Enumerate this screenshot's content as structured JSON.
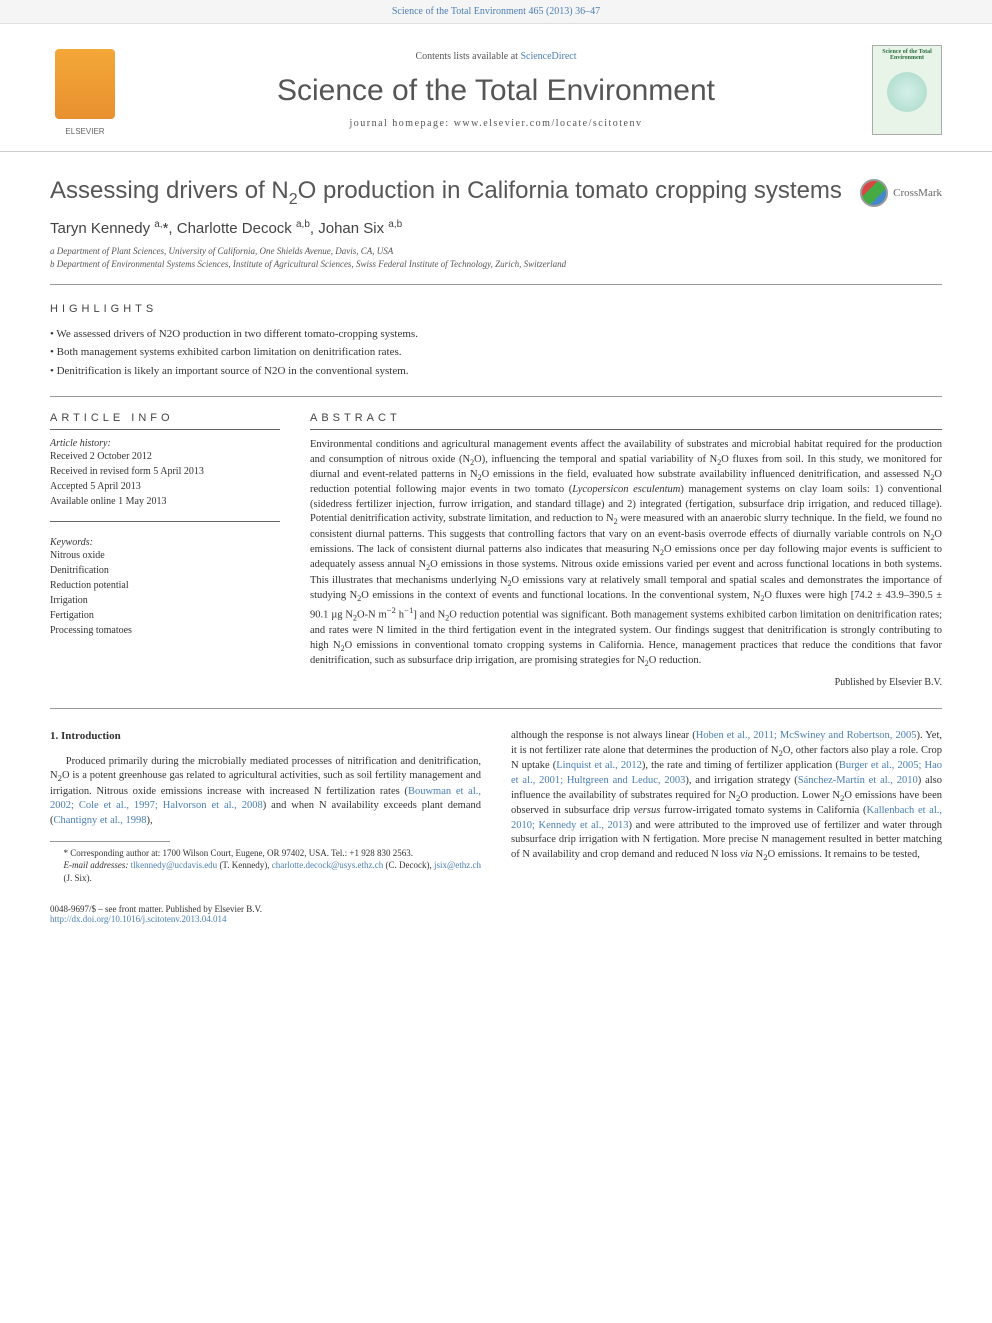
{
  "header_bar": {
    "text_prefix": "Science of the Total Environment 465 (2013) 36–47"
  },
  "journal_header": {
    "contents_prefix": "Contents lists available at ",
    "contents_link": "ScienceDirect",
    "journal_title": "Science of the Total Environment",
    "homepage_prefix": "journal homepage: ",
    "homepage_url": "www.elsevier.com/locate/scitotenv",
    "elsevier_label": "ELSEVIER",
    "cover_title": "Science of the Total Environment"
  },
  "article": {
    "title_html": "Assessing drivers of N<sub>2</sub>O production in California tomato cropping systems",
    "crossmark_label": "CrossMark",
    "authors_html": "Taryn Kennedy <sup>a,</sup><span class='star'>*</span>, Charlotte Decock <sup>a,b</sup>, Johan Six <sup>a,b</sup>",
    "affiliations": [
      "a  Department of Plant Sciences, University of California, One Shields Avenue, Davis, CA, USA",
      "b  Department of Environmental Systems Sciences, Institute of Agricultural Sciences, Swiss Federal Institute of Technology, Zurich, Switzerland"
    ]
  },
  "highlights": {
    "header": "HIGHLIGHTS",
    "items": [
      "We assessed drivers of N2O production in two different tomato-cropping systems.",
      "Both management systems exhibited carbon limitation on denitrification rates.",
      "Denitrification is likely an important source of N2O in the conventional system."
    ]
  },
  "article_info": {
    "header": "ARTICLE INFO",
    "history_label": "Article history:",
    "history": [
      "Received 2 October 2012",
      "Received in revised form 5 April 2013",
      "Accepted 5 April 2013",
      "Available online 1 May 2013"
    ],
    "keywords_label": "Keywords:",
    "keywords": [
      "Nitrous oxide",
      "Denitrification",
      "Reduction potential",
      "Irrigation",
      "Fertigation",
      "Processing tomatoes"
    ]
  },
  "abstract": {
    "header": "ABSTRACT",
    "text_html": "Environmental conditions and agricultural management events affect the availability of substrates and microbial habitat required for the production and consumption of nitrous oxide (N<sub>2</sub>O), influencing the temporal and spatial variability of N<sub>2</sub>O fluxes from soil. In this study, we monitored for diurnal and event-related patterns in N<sub>2</sub>O emissions in the field, evaluated how substrate availability influenced denitrification, and assessed N<sub>2</sub>O reduction potential following major events in two tomato (<i>Lycopersicon esculentum</i>) management systems on clay loam soils: 1) conventional (sidedress fertilizer injection, furrow irrigation, and standard tillage) and 2) integrated (fertigation, subsurface drip irrigation, and reduced tillage). Potential denitrification activity, substrate limitation, and reduction to N<sub>2</sub> were measured with an anaerobic slurry technique. In the field, we found no consistent diurnal patterns. This suggests that controlling factors that vary on an event-basis overrode effects of diurnally variable controls on N<sub>2</sub>O emissions. The lack of consistent diurnal patterns also indicates that measuring N<sub>2</sub>O emissions once per day following major events is sufficient to adequately assess annual N<sub>2</sub>O emissions in those systems. Nitrous oxide emissions varied per event and across functional locations in both systems. This illustrates that mechanisms underlying N<sub>2</sub>O emissions vary at relatively small temporal and spatial scales and demonstrates the importance of studying N<sub>2</sub>O emissions in the context of events and functional locations. In the conventional system, N<sub>2</sub>O fluxes were high [74.2 ± 43.9–390.5 ± 90.1 µg N<sub>2</sub>O-N m<sup>−2</sup> h<sup>−1</sup>] and N<sub>2</sub>O reduction potential was significant. Both management systems exhibited carbon limitation on denitrification rates; and rates were N limited in the third fertigation event in the integrated system. Our findings suggest that denitrification is strongly contributing to high N<sub>2</sub>O emissions in conventional tomato cropping systems in California. Hence, management practices that reduce the conditions that favor denitrification, such as subsurface drip irrigation, are promising strategies for N<sub>2</sub>O reduction.",
    "publisher": "Published by Elsevier B.V."
  },
  "intro": {
    "heading": "1. Introduction",
    "col1_html": "Produced primarily during the microbially mediated processes of nitrification and denitrification, N<sub>2</sub>O is a potent greenhouse gas related to agricultural activities, such as soil fertility management and irrigation. Nitrous oxide emissions increase with increased N fertilization rates (<a href='#'>Bouwman et al., 2002; Cole et al., 1997; Halvorson et al., 2008</a>) and when N availability exceeds plant demand (<a href='#'>Chantigny et al., 1998</a>),",
    "col2_html": "although the response is not always linear (<a href='#'>Hoben et al., 2011; McSwiney and Robertson, 2005</a>). Yet, it is not fertilizer rate alone that determines the production of N<sub>2</sub>O, other factors also play a role. Crop N uptake (<a href='#'>Linquist et al., 2012</a>), the rate and timing of fertilizer application (<a href='#'>Burger et al., 2005; Hao et al., 2001; Hultgreen and Leduc, 2003</a>), and irrigation strategy (<a href='#'>Sánchez-Martín et al., 2010</a>) also influence the availability of substrates required for N<sub>2</sub>O production. Lower N<sub>2</sub>O emissions have been observed in subsurface drip <i>versus</i> furrow-irrigated tomato systems in California (<a href='#'>Kallenbach et al., 2010; Kennedy et al., 2013</a>) and were attributed to the improved use of fertilizer and water through subsurface drip irrigation with N fertigation. More precise N management resulted in better matching of N availability and crop demand and reduced N loss <i>via</i> N<sub>2</sub>O emissions. It remains to be tested,"
  },
  "footnotes": {
    "corresponding_html": "* Corresponding author at: 1700 Wilson Court, Eugene, OR 97402, USA. Tel.: +1 928 830 2563.",
    "email_label": "E-mail addresses: ",
    "emails_html": "<a href='#'>tlkennedy@ucdavis.edu</a> (T. Kennedy), <a href='#'>charlotte.decock@usys.ethz.ch</a> (C. Decock), <a href='#'>jsix@ethz.ch</a> (J. Six)."
  },
  "bottom": {
    "issn_line": "0048-9697/$ – see front matter. Published by Elsevier B.V.",
    "doi": "http://dx.doi.org/10.1016/j.scitotenv.2013.04.014"
  },
  "colors": {
    "link": "#4a7fb5",
    "text": "#333333",
    "heading": "#565656",
    "rule": "#999999"
  }
}
